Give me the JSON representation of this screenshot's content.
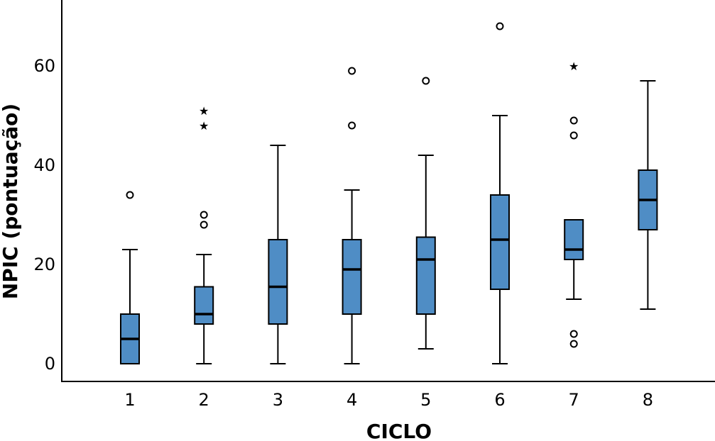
{
  "chart_data": {
    "type": "box",
    "xlabel": "CICLO",
    "ylabel": "NPIC (pontuação)",
    "ylim": [
      0,
      70
    ],
    "yticks": [
      0,
      20,
      40,
      60
    ],
    "grid": false,
    "box_color": "#4f8dc5",
    "categories": [
      "1",
      "2",
      "3",
      "4",
      "5",
      "6",
      "7",
      "8"
    ],
    "boxes": [
      {
        "category": "1",
        "whisker_low": 0,
        "q1": 0,
        "median": 5,
        "q3": 10,
        "whisker_high": 23,
        "outliers": [
          34
        ],
        "extremes": []
      },
      {
        "category": "2",
        "whisker_low": 0,
        "q1": 8,
        "median": 10,
        "q3": 15.5,
        "whisker_high": 22,
        "outliers": [
          28,
          30
        ],
        "extremes": [
          48,
          51
        ]
      },
      {
        "category": "3",
        "whisker_low": 0,
        "q1": 8,
        "median": 15.5,
        "q3": 25,
        "whisker_high": 44,
        "outliers": [],
        "extremes": []
      },
      {
        "category": "4",
        "whisker_low": 0,
        "q1": 10,
        "median": 19,
        "q3": 25,
        "whisker_high": 35,
        "outliers": [
          48,
          59
        ],
        "extremes": []
      },
      {
        "category": "5",
        "whisker_low": 3,
        "q1": 10,
        "median": 21,
        "q3": 25.5,
        "whisker_high": 42,
        "outliers": [
          57
        ],
        "extremes": []
      },
      {
        "category": "6",
        "whisker_low": 0,
        "q1": 15,
        "median": 25,
        "q3": 34,
        "whisker_high": 50,
        "outliers": [
          68
        ],
        "extremes": []
      },
      {
        "category": "7",
        "whisker_low": 13,
        "q1": 21,
        "median": 23,
        "q3": 29,
        "whisker_high": 29,
        "outliers": [
          4,
          6,
          46,
          49
        ],
        "extremes": [
          60
        ]
      },
      {
        "category": "8",
        "whisker_low": 11,
        "q1": 27,
        "median": 33,
        "q3": 39,
        "whisker_high": 57,
        "outliers": [],
        "extremes": []
      }
    ]
  }
}
